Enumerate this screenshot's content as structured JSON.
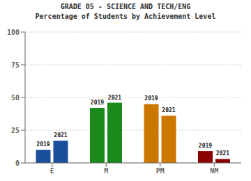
{
  "chart_data": {
    "type": "bar",
    "title": "GRADE 05 - SCIENCE AND TECH/ENG",
    "subtitle": "Percentage of Students by Achievement Level",
    "categories": [
      "E",
      "M",
      "PM",
      "NM"
    ],
    "series": [
      {
        "name": "2019",
        "values": [
          10,
          42,
          45,
          9
        ],
        "colors": [
          "#1a4f9c",
          "#1a8a1a",
          "#cc7700",
          "#8b0000"
        ]
      },
      {
        "name": "2021",
        "values": [
          17,
          46,
          36,
          3
        ],
        "colors": [
          "#1a4f9c",
          "#1a8a1a",
          "#cc7700",
          "#8b0000"
        ]
      }
    ],
    "ylim": [
      0,
      100
    ],
    "yticks": [
      0,
      25,
      50,
      75,
      100
    ],
    "grid": true
  }
}
